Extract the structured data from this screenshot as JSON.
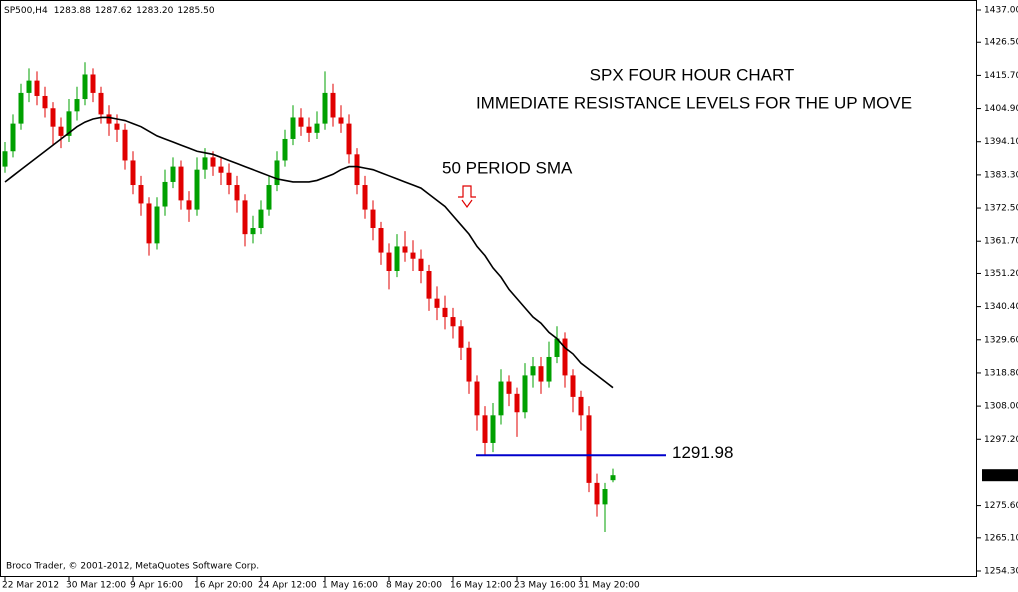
{
  "chart_data": {
    "type": "candlestick",
    "header": {
      "symbol": "SP500,H4",
      "ohlc": [
        "1283.88",
        "1287.62",
        "1283.20",
        "1285.50"
      ]
    },
    "title": "SPX FOUR HOUR CHART",
    "subtitle": "IMMEDIATE RESISTANCE LEVELS FOR THE UP MOVE",
    "sma_annotation": "50 PERIOD SMA",
    "footer": "Broco Trader, © 2001-2012, MetaQuotes Software Corp.",
    "up_color": "#00a000",
    "down_color": "#e00000",
    "annotation_color": "#e00000",
    "categories": [
      "22 Mar 2012",
      null,
      null,
      null,
      null,
      null,
      null,
      null,
      "30 Mar 12:00",
      null,
      null,
      null,
      null,
      null,
      null,
      null,
      "9 Apr 16:00",
      null,
      null,
      null,
      null,
      null,
      null,
      null,
      "16 Apr 20:00",
      null,
      null,
      null,
      null,
      null,
      null,
      null,
      "24 Apr 12:00",
      null,
      null,
      null,
      null,
      null,
      null,
      null,
      "1 May 16:00",
      null,
      null,
      null,
      null,
      null,
      null,
      null,
      "8 May 20:00",
      null,
      null,
      null,
      null,
      null,
      null,
      null,
      "16 May 12:00",
      null,
      null,
      null,
      null,
      null,
      null,
      null,
      "23 May 16:00",
      null,
      null,
      null,
      null,
      null,
      null,
      null,
      "31 May 20:00",
      null,
      null,
      null,
      null
    ],
    "open": [
      1386,
      1391,
      1400,
      1410,
      1414,
      1409,
      1405,
      1399,
      1396,
      1404,
      1408,
      1416,
      1410,
      1403,
      1400,
      1398,
      1388,
      1380,
      1374,
      1361,
      1373,
      1381,
      1386,
      1375,
      1372,
      1385,
      1389,
      1386,
      1384,
      1380,
      1375,
      1364,
      1366,
      1372,
      1380,
      1388,
      1395,
      1402,
      1399,
      1397,
      1400,
      1410,
      1402,
      1400,
      1390,
      1380,
      1372,
      1366,
      1358,
      1352,
      1360,
      1358,
      1356,
      1352,
      1343,
      1340,
      1337,
      1334,
      1327,
      1316,
      1305,
      1296,
      1305,
      1316,
      1312,
      1306,
      1318,
      1321,
      1316,
      1324,
      1330,
      1318,
      1311,
      1305,
      1283,
      1276,
      1283.88
    ],
    "high": [
      1394,
      1403,
      1413,
      1418,
      1417,
      1412,
      1407,
      1402,
      1408,
      1412,
      1420,
      1418,
      1412,
      1406,
      1403,
      1400,
      1391,
      1383,
      1376,
      1376,
      1385,
      1389,
      1388,
      1378,
      1389,
      1392,
      1391,
      1389,
      1387,
      1383,
      1377,
      1370,
      1375,
      1383,
      1391,
      1398,
      1406,
      1405,
      1402,
      1404,
      1417,
      1413,
      1406,
      1403,
      1392,
      1383,
      1375,
      1368,
      1361,
      1364,
      1365,
      1362,
      1359,
      1354,
      1347,
      1344,
      1340,
      1336,
      1329,
      1318,
      1308,
      1309,
      1320,
      1318,
      1314,
      1322,
      1324,
      1324,
      1329,
      1334,
      1332,
      1320,
      1313,
      1308,
      1286,
      1283,
      1287.62
    ],
    "low": [
      1384,
      1389,
      1398,
      1407,
      1406,
      1402,
      1393,
      1392,
      1394,
      1401,
      1406,
      1407,
      1400,
      1396,
      1394,
      1385,
      1377,
      1370,
      1357,
      1359,
      1370,
      1379,
      1372,
      1368,
      1370,
      1382,
      1383,
      1380,
      1377,
      1371,
      1360,
      1361,
      1364,
      1370,
      1378,
      1386,
      1393,
      1396,
      1394,
      1395,
      1398,
      1399,
      1397,
      1387,
      1377,
      1369,
      1362,
      1354,
      1346,
      1350,
      1355,
      1352,
      1348,
      1339,
      1336,
      1333,
      1330,
      1323,
      1312,
      1300,
      1292,
      1293,
      1302,
      1308,
      1298,
      1304,
      1314,
      1312,
      1314,
      1322,
      1314,
      1306,
      1300,
      1280,
      1272,
      1267,
      1283.2
    ],
    "close": [
      1391,
      1400,
      1410,
      1414,
      1409,
      1405,
      1399,
      1396,
      1404,
      1408,
      1416,
      1410,
      1403,
      1400,
      1398,
      1388,
      1380,
      1374,
      1361,
      1373,
      1381,
      1386,
      1375,
      1372,
      1385,
      1389,
      1386,
      1384,
      1380,
      1375,
      1364,
      1366,
      1372,
      1380,
      1388,
      1395,
      1402,
      1399,
      1397,
      1400,
      1410,
      1402,
      1400,
      1390,
      1380,
      1372,
      1366,
      1358,
      1352,
      1360,
      1358,
      1356,
      1352,
      1343,
      1340,
      1337,
      1334,
      1327,
      1316,
      1305,
      1296,
      1305,
      1316,
      1312,
      1306,
      1318,
      1321,
      1316,
      1324,
      1330,
      1318,
      1311,
      1305,
      1283,
      1276,
      1281,
      1285.5
    ],
    "sma": {
      "color": "#000000",
      "values": [
        1381,
        1383,
        1385,
        1387,
        1389,
        1391,
        1393,
        1395,
        1397,
        1399,
        1400.5,
        1401.5,
        1402,
        1402,
        1401.5,
        1401,
        1400,
        1399,
        1397.5,
        1396,
        1395,
        1394,
        1393,
        1392,
        1391,
        1390.5,
        1390,
        1389,
        1388,
        1387,
        1386,
        1385,
        1384,
        1383,
        1382,
        1381.5,
        1381,
        1381,
        1381,
        1381.5,
        1382.5,
        1383.5,
        1385,
        1386,
        1386,
        1385.5,
        1385,
        1384,
        1383,
        1382,
        1381,
        1380,
        1379,
        1377,
        1375,
        1373,
        1370,
        1367,
        1364,
        1360,
        1357,
        1353,
        1350,
        1346,
        1343,
        1340,
        1337,
        1335,
        1332,
        1330,
        1327,
        1325,
        1322,
        1320,
        1318,
        1316,
        1314
      ]
    },
    "level": {
      "value": 1291.98,
      "label": "1291.98",
      "color": "#0000cc"
    },
    "last_price": {
      "value": 1285.5,
      "label": "1285.50"
    },
    "ylim": [
      1254.3,
      1437
    ],
    "yticks": [
      {
        "value": 1437,
        "label": "1437.00"
      },
      {
        "value": 1426.5,
        "label": "1426.50"
      },
      {
        "value": 1415.7,
        "label": "1415.70"
      },
      {
        "value": 1404.9,
        "label": "1404.90"
      },
      {
        "value": 1394.1,
        "label": "1394.10"
      },
      {
        "value": 1383.3,
        "label": "1383.30"
      },
      {
        "value": 1372.5,
        "label": "1372.50"
      },
      {
        "value": 1361.7,
        "label": "1361.70"
      },
      {
        "value": 1351.2,
        "label": "1351.20"
      },
      {
        "value": 1340.4,
        "label": "1340.40"
      },
      {
        "value": 1329.6,
        "label": "1329.60"
      },
      {
        "value": 1318.8,
        "label": "1318.80"
      },
      {
        "value": 1308,
        "label": "1308.00"
      },
      {
        "value": 1297.2,
        "label": "1297.20"
      },
      {
        "value": 1275.6,
        "label": "1275.60"
      },
      {
        "value": 1265.1,
        "label": "1265.10"
      },
      {
        "value": 1254.3,
        "label": "1254.30"
      }
    ]
  }
}
